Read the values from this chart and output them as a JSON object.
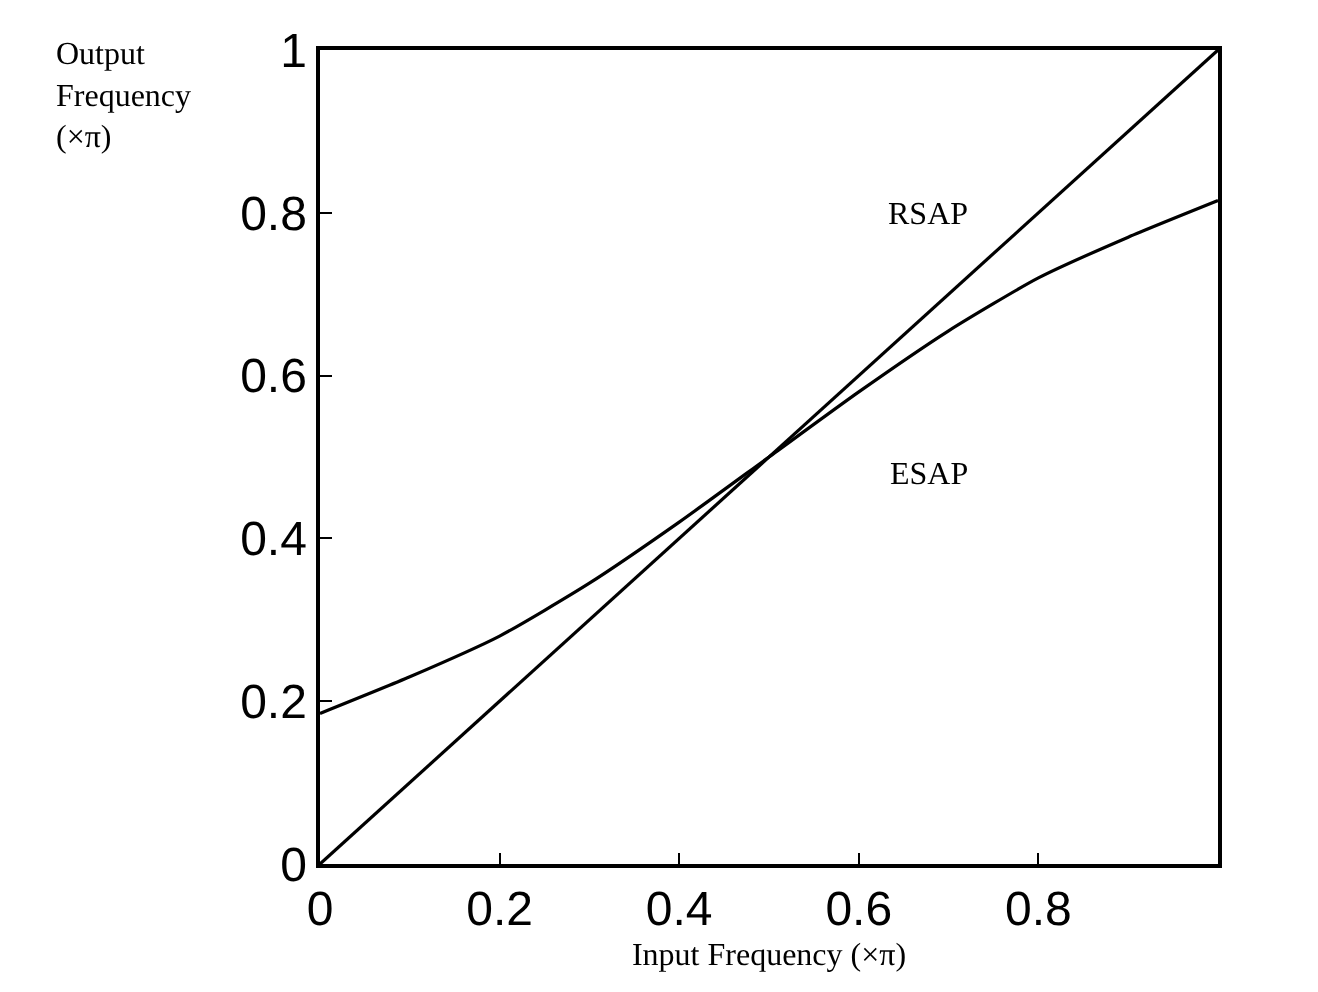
{
  "chart_data": {
    "type": "line",
    "xlabel": "Input Frequency (×π)",
    "ylabel": "Output\nFrequency\n(×π)",
    "xlim": [
      0,
      1
    ],
    "ylim": [
      0,
      1
    ],
    "xticks": [
      0,
      0.2,
      0.4,
      0.6,
      0.8
    ],
    "yticks": [
      0,
      0.2,
      0.4,
      0.6,
      0.8,
      1
    ],
    "marker": "none",
    "line_style": "solid",
    "series": [
      {
        "name": "RSAP",
        "color": "#000000",
        "x": [
          0,
          1
        ],
        "values": [
          0,
          1
        ]
      },
      {
        "name": "ESAP",
        "color": "#000000",
        "x": [
          0,
          0.1,
          0.2,
          0.3,
          0.4,
          0.5,
          0.6,
          0.7,
          0.8,
          0.9,
          1
        ],
        "values": [
          0.185,
          0.23,
          0.28,
          0.345,
          0.42,
          0.5,
          0.58,
          0.655,
          0.72,
          0.77,
          0.815
        ]
      }
    ]
  }
}
